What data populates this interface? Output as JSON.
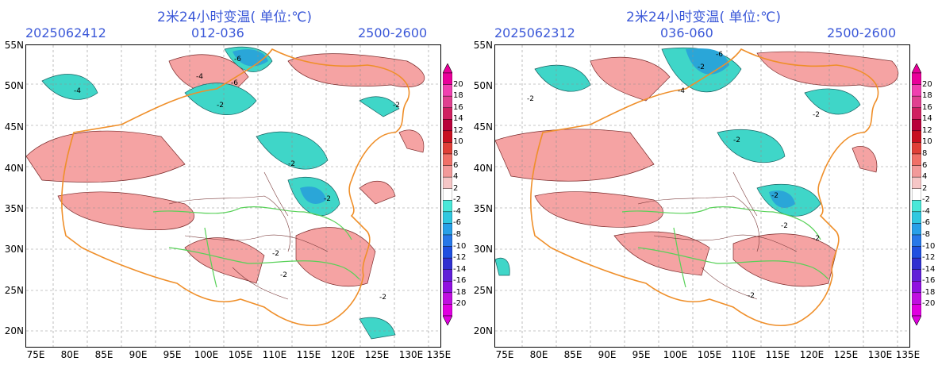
{
  "title": "2米24小时变温( 单位:℃)",
  "panels": [
    {
      "date": "2025062412",
      "range": "012-036",
      "height": "2500-2600"
    },
    {
      "date": "2025062312",
      "range": "036-060",
      "height": "2500-2600"
    }
  ],
  "lat_ticks": [
    "55N",
    "50N",
    "45N",
    "40N",
    "35N",
    "30N",
    "25N",
    "20N"
  ],
  "lon_ticks": [
    "75E",
    "80E",
    "85E",
    "90E",
    "95E",
    "100E",
    "105E",
    "110E",
    "115E",
    "120E",
    "125E",
    "130E",
    "135E"
  ],
  "colorbar": {
    "labels": [
      "20",
      "18",
      "16",
      "14",
      "12",
      "10",
      "8",
      "6",
      "4",
      "2",
      "-2",
      "-4",
      "-6",
      "-8",
      "-10",
      "-12",
      "-14",
      "-16",
      "-18",
      "-20"
    ],
    "colors": [
      "#e9009a",
      "#f040b0",
      "#e04090",
      "#d02060",
      "#b8003a",
      "#c81020",
      "#e04038",
      "#f07068",
      "#f29a9a",
      "#f6c6c6",
      "#ffffff",
      "#48e8d8",
      "#30c8e0",
      "#28a0e8",
      "#2878e8",
      "#2050e0",
      "#3030d0",
      "#6020d8",
      "#9010e0",
      "#c010e0",
      "#e000e0"
    ]
  },
  "contour_labels_left": [
    "-6",
    "-4",
    "-6",
    "-4",
    "-2",
    "-2",
    "-2",
    "-2",
    "-2",
    "-2",
    "-2"
  ],
  "contour_labels_right": [
    "-6",
    "-4",
    "-2",
    "-2",
    "-2",
    "-2",
    "-2",
    "-2",
    "-2",
    "-2"
  ],
  "colors": {
    "warm": "#f5a3a3",
    "cool": "#3fd6c8",
    "coolDeep": "#2aa6d8",
    "coolDeeper": "#1f78d6",
    "boundary": "#ef8f2a",
    "river": "#58d158",
    "province": "#7a3a3a",
    "grid": "#909090"
  }
}
